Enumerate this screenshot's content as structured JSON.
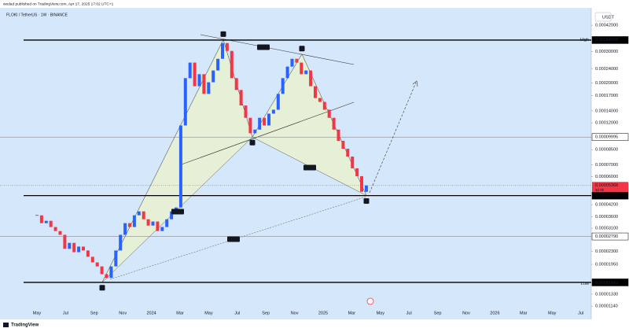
{
  "header": {
    "publisher": "wedad published on TradingView.com, Apr 17, 2025 17:02 UTC+1",
    "symbol": "FLOKI / TetherUS · 1W · BINANCE",
    "brand": "TradingView"
  },
  "chart_data": {
    "type": "candlestick",
    "currency": "USDT",
    "log_scale": true,
    "ylim": [
      1.075e-05,
      0.000525
    ],
    "yticks": [
      {
        "value": 0.00042,
        "label": "0.00042000"
      },
      {
        "value": 0.0003,
        "label": "0.00030000"
      },
      {
        "value": 0.00024,
        "label": "0.00024000"
      },
      {
        "value": 0.0002,
        "label": "0.00020000"
      },
      {
        "value": 0.00017,
        "label": "0.00017000"
      },
      {
        "value": 0.00014,
        "label": "0.00014000"
      },
      {
        "value": 0.00012,
        "label": "0.00012000"
      },
      {
        "value": 8.5e-05,
        "label": "0.00008500"
      },
      {
        "value": 7e-05,
        "label": "0.00007000"
      },
      {
        "value": 6e-05,
        "label": "0.00006000"
      },
      {
        "value": 4.2e-05,
        "label": "0.00004200"
      },
      {
        "value": 3.6e-05,
        "label": "0.00003600"
      },
      {
        "value": 3.1e-05,
        "label": "0.00003100"
      },
      {
        "value": 2.3e-05,
        "label": "0.00002300"
      },
      {
        "value": 1.95e-05,
        "label": "0.00001950"
      },
      {
        "value": 1.33e-05,
        "label": "0.00001330"
      },
      {
        "value": 1.14e-05,
        "label": "0.00001140"
      }
    ],
    "x_labels": [
      "May",
      "Jul",
      "Sep",
      "Nov",
      "2024",
      "Mar",
      "May",
      "Jul",
      "Sep",
      "Nov",
      "2025",
      "Mar",
      "May",
      "Jul",
      "Sep",
      "Nov",
      "2026",
      "Mar",
      "May",
      "Jul"
    ],
    "values": [
      3.66e-05,
      3.31e-05,
      3.41e-05,
      3.15e-05,
      2.99e-05,
      2.85e-05,
      2.38e-05,
      2.57e-05,
      2.28e-05,
      2.45e-05,
      2.33e-05,
      2.15e-05,
      2e-05,
      1.9e-05,
      1.72e-05,
      1.64e-05,
      1.9e-05,
      2.33e-05,
      2.85e-05,
      3.31e-05,
      3.15e-05,
      3.66e-05,
      3.85e-05,
      3.48e-05,
      3.21e-05,
      3.38e-05,
      2.99e-05,
      3.15e-05,
      3.48e-05,
      3.85e-05,
      4.05e-05,
      0.000116,
      0.000213,
      0.00026,
      0.000192,
      0.000224,
      0.000174,
      0.000202,
      0.000235,
      0.000273,
      0.000334,
      0.000302,
      0.000213,
      0.000183,
      0.00015,
      0.000128,
      0.000105,
      0.00011,
      0.000128,
      0.000116,
      0.000135,
      0.000142,
      0.000174,
      0.000213,
      0.000247,
      0.000273,
      0.00026,
      0.000224,
      0.000235,
      0.000192,
      0.000165,
      0.000157,
      0.000142,
      0.000128,
      0.00011,
      9.52e-05,
      8.6e-05,
      7.78e-05,
      6.69e-05,
      6.05e-05,
      4.95e-05,
      5.37e-05
    ],
    "up_color": "#2962ff",
    "down_color": "#f23645",
    "levels": [
      {
        "value": 0.00034727,
        "label": "0.00034727",
        "style": "bold"
      },
      {
        "value": 9.995e-05,
        "label": "0.00009995",
        "style": "thin"
      },
      {
        "value": 4.715e-05,
        "label": "0.00004715",
        "style": "bold"
      },
      {
        "value": 2.79e-05,
        "label": "0.00002790",
        "style": "thin"
      },
      {
        "value": 1.547e-05,
        "label": "0.00001547",
        "style": "bold"
      }
    ],
    "high": {
      "name": "High",
      "value": 0.000349,
      "label": "0.00034900"
    },
    "low": {
      "name": "Low",
      "value": 1.524e-05,
      "label": "0.00001524"
    },
    "last": {
      "value": 5.368e-05,
      "label": "0.00005368",
      "countdown": "3d 8h"
    },
    "pattern": [
      {
        "label": "X",
        "value": 1.55e-05
      },
      {
        "label": "A",
        "value": 0.000349
      },
      {
        "label": "B",
        "value": 9.99e-05
      },
      {
        "label": "C",
        "value": 0.00029
      },
      {
        "label": "D",
        "value": 4.72e-05
      }
    ],
    "annotations": [
      "0.786",
      "0.359",
      "1.393",
      "0.907"
    ]
  }
}
